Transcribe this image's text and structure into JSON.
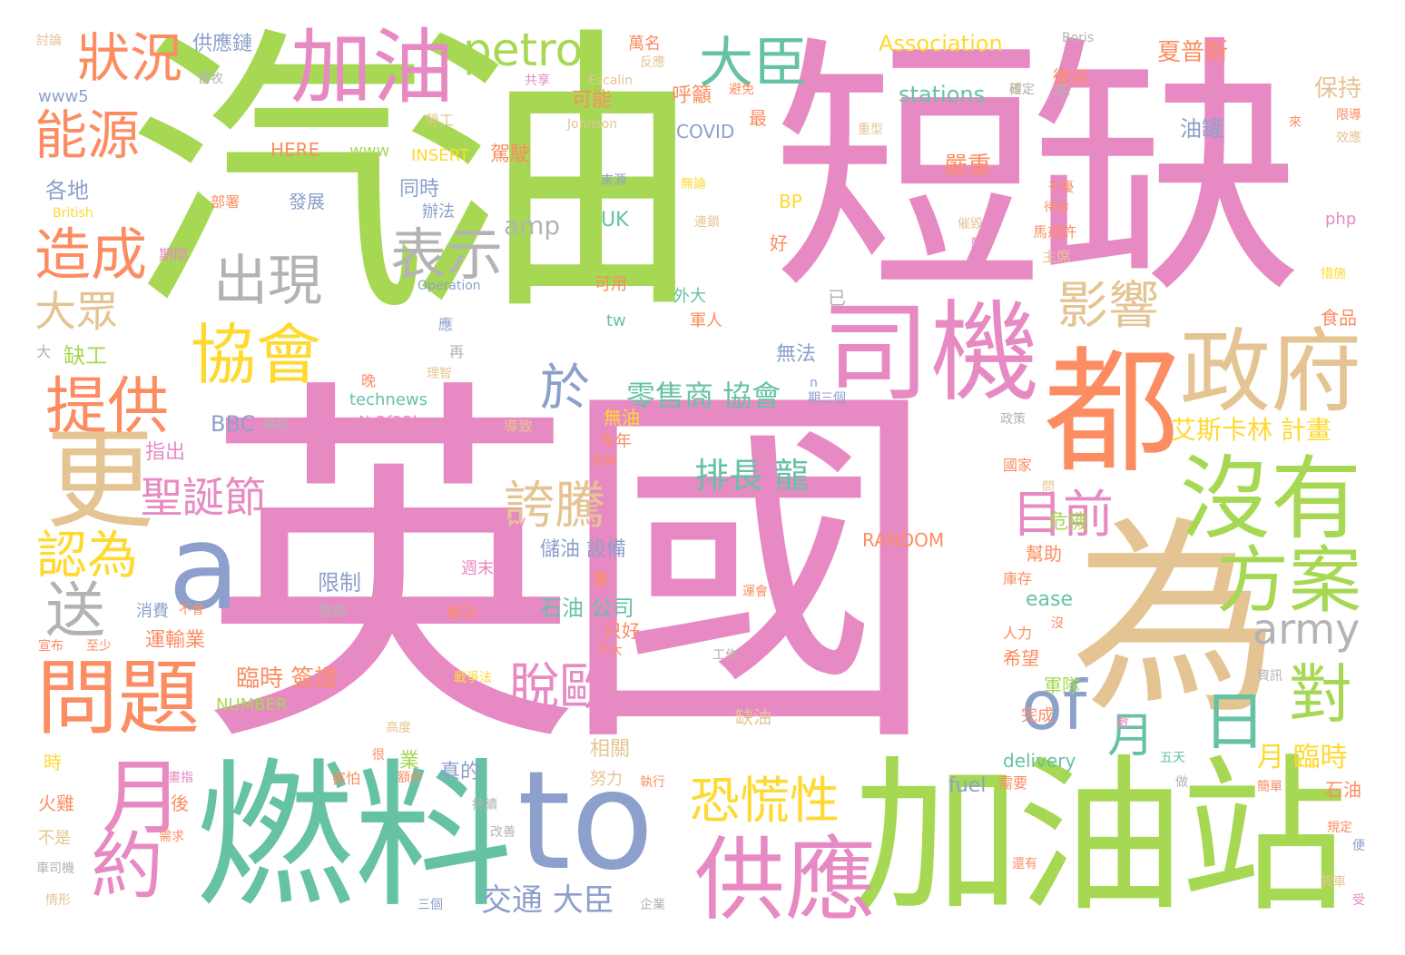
{
  "palette": {
    "pink": "#e78ac3",
    "green": "#a6d854",
    "tan": "#e5c494",
    "orange": "#fc8d62",
    "blue": "#8da0cb",
    "teal": "#66c2a5",
    "yellow": "#ffd92f",
    "gray": "#b3b3b3"
  },
  "words": [
    {
      "text": "汽油",
      "color": "#a6d854"
    },
    {
      "text": "短缺",
      "color": "#e78ac3"
    },
    {
      "text": "英國",
      "color": "#e78ac3"
    },
    {
      "text": "加油站",
      "color": "#a6d854"
    },
    {
      "text": "燃料",
      "color": "#66c2a5"
    },
    {
      "text": "to",
      "color": "#8da0cb"
    },
    {
      "text": "為",
      "color": "#e5c494"
    },
    {
      "text": "都",
      "color": "#fc8d62"
    },
    {
      "text": "a",
      "color": "#8da0cb"
    },
    {
      "text": "更",
      "color": "#e5c494"
    },
    {
      "text": "加油",
      "color": "#e78ac3"
    },
    {
      "text": "司機",
      "color": "#e78ac3"
    },
    {
      "text": "政府",
      "color": "#e5c494"
    },
    {
      "text": "沒有",
      "color": "#a6d854"
    },
    {
      "text": "方案",
      "color": "#a6d854"
    },
    {
      "text": "供應",
      "color": "#e78ac3"
    },
    {
      "text": "問題",
      "color": "#fc8d62"
    },
    {
      "text": "of",
      "color": "#8da0cb"
    },
    {
      "text": "petrol",
      "color": "#a6d854"
    },
    {
      "text": "大臣",
      "color": "#66c2a5"
    },
    {
      "text": "協會",
      "color": "#ffd92f"
    },
    {
      "text": "出現",
      "color": "#b3b3b3"
    },
    {
      "text": "表示",
      "color": "#b3b3b3"
    },
    {
      "text": "狀況",
      "color": "#fc8d62"
    },
    {
      "text": "能源",
      "color": "#fc8d62"
    },
    {
      "text": "造成",
      "color": "#fc8d62"
    },
    {
      "text": "大眾",
      "color": "#e5c494"
    },
    {
      "text": "提供",
      "color": "#fc8d62"
    },
    {
      "text": "月",
      "color": "#e78ac3"
    },
    {
      "text": "約",
      "color": "#e78ac3"
    },
    {
      "text": "送",
      "color": "#b3b3b3"
    },
    {
      "text": "認為",
      "color": "#ffd92f"
    },
    {
      "text": "聖誕節",
      "color": "#e78ac3"
    },
    {
      "text": "於",
      "color": "#8da0cb"
    },
    {
      "text": "誇騰",
      "color": "#e5c494"
    },
    {
      "text": "影響",
      "color": "#e5c494"
    },
    {
      "text": "目前",
      "color": "#e78ac3"
    },
    {
      "text": "恐慌性",
      "color": "#ffd92f"
    },
    {
      "text": "脫歐",
      "color": "#e78ac3"
    },
    {
      "text": "army",
      "color": "#b3b3b3"
    },
    {
      "text": "對",
      "color": "#a6d854"
    },
    {
      "text": "日",
      "color": "#66c2a5"
    },
    {
      "text": "月",
      "color": "#66c2a5"
    },
    {
      "text": "零售商 協會",
      "color": "#66c2a5"
    },
    {
      "text": "排長 龍",
      "color": "#66c2a5"
    },
    {
      "text": "交通 大臣",
      "color": "#8da0cb"
    },
    {
      "text": "艾斯卡林 計畫",
      "color": "#ffd92f"
    },
    {
      "text": "月 臨時",
      "color": "#ffd92f"
    },
    {
      "text": "臨時 簽證",
      "color": "#fc8d62"
    },
    {
      "text": "stations",
      "color": "#66c2a5"
    },
    {
      "text": "Association",
      "color": "#ffd92f"
    },
    {
      "text": "夏普斯",
      "color": "#fc8d62"
    },
    {
      "text": "保持",
      "color": "#e5c494"
    },
    {
      "text": "徵召",
      "color": "#fc8d62"
    },
    {
      "text": "不",
      "color": "#b3b3b3"
    },
    {
      "text": "油罐",
      "color": "#8da0cb"
    },
    {
      "text": "嚴重",
      "color": "#fc8d62"
    },
    {
      "text": "呼籲",
      "color": "#fc8d62"
    },
    {
      "text": "最",
      "color": "#fc8d62"
    },
    {
      "text": "COVID",
      "color": "#8da0cb"
    },
    {
      "text": "可能",
      "color": "#fc8d62"
    },
    {
      "text": "駕駛",
      "color": "#fc8d62"
    },
    {
      "text": "INSERT",
      "color": "#ffd92f"
    },
    {
      "text": "HERE",
      "color": "#fc8d62"
    },
    {
      "text": "www",
      "color": "#a6d854"
    },
    {
      "text": "供應鏈",
      "color": "#8da0cb"
    },
    {
      "text": "各地",
      "color": "#8da0cb"
    },
    {
      "text": "同時",
      "color": "#8da0cb"
    },
    {
      "text": "辦法",
      "color": "#8da0cb"
    },
    {
      "text": "發展",
      "color": "#8da0cb"
    },
    {
      "text": "amp",
      "color": "#b3b3b3"
    },
    {
      "text": "UK",
      "color": "#66c2a5"
    },
    {
      "text": "BP",
      "color": "#ffd92f"
    },
    {
      "text": "好",
      "color": "#fc8d62"
    },
    {
      "text": "無法",
      "color": "#8da0cb"
    },
    {
      "text": "可用",
      "color": "#fc8d62"
    },
    {
      "text": "tw",
      "color": "#66c2a5"
    },
    {
      "text": "外大",
      "color": "#66c2a5"
    },
    {
      "text": "軍人",
      "color": "#fc8d62"
    },
    {
      "text": "已",
      "color": "#b3b3b3"
    },
    {
      "text": "technews",
      "color": "#66c2a5"
    },
    {
      "text": "a4b3f35b",
      "color": "#e78ac3"
    },
    {
      "text": "BBC",
      "color": "#8da0cb"
    },
    {
      "text": "缺工",
      "color": "#a6d854"
    },
    {
      "text": "大",
      "color": "#b3b3b3"
    },
    {
      "text": "指出",
      "color": "#e78ac3"
    },
    {
      "text": "無油",
      "color": "#ffd92f"
    },
    {
      "text": "今年",
      "color": "#fc8d62"
    },
    {
      "text": "危機",
      "color": "#a6d854"
    },
    {
      "text": "幫助",
      "color": "#fc8d62"
    },
    {
      "text": "RANDOM",
      "color": "#fc8d62"
    },
    {
      "text": "儲油 設備",
      "color": "#8da0cb"
    },
    {
      "text": "石油 公司",
      "color": "#66c2a5"
    },
    {
      "text": "只好",
      "color": "#fc8d62"
    },
    {
      "text": "限制",
      "color": "#8da0cb"
    },
    {
      "text": "消費",
      "color": "#8da0cb"
    },
    {
      "text": "運輸業",
      "color": "#fc8d62"
    },
    {
      "text": "cb",
      "color": "#e78ac3"
    },
    {
      "text": "解決",
      "color": "#fc8d62"
    },
    {
      "text": "週末",
      "color": "#e78ac3"
    },
    {
      "text": "HGV",
      "color": "#e78ac3"
    },
    {
      "text": "ease",
      "color": "#66c2a5"
    },
    {
      "text": "希望",
      "color": "#fc8d62"
    },
    {
      "text": "軍隊",
      "color": "#a6d854"
    },
    {
      "text": "完成",
      "color": "#fc8d62"
    },
    {
      "text": "庫存",
      "color": "#fc8d62"
    },
    {
      "text": "人力",
      "color": "#fc8d62"
    },
    {
      "text": "NUMBER",
      "color": "#a6d854"
    },
    {
      "text": "缺油",
      "color": "#e5c494"
    },
    {
      "text": "相關",
      "color": "#e5c494"
    },
    {
      "text": "業",
      "color": "#a6d854"
    },
    {
      "text": "真的",
      "color": "#8da0cb"
    },
    {
      "text": "fuel",
      "color": "#8da0cb"
    },
    {
      "text": "delivery",
      "color": "#66c2a5"
    },
    {
      "text": "努力",
      "color": "#e5c494"
    },
    {
      "text": "需要",
      "color": "#fc8d62"
    },
    {
      "text": "石油",
      "color": "#fc8d62"
    },
    {
      "text": "火雞",
      "color": "#fc8d62"
    },
    {
      "text": "後",
      "color": "#fc8d62"
    },
    {
      "text": "不是",
      "color": "#e5c494"
    },
    {
      "text": "時",
      "color": "#ffd92f"
    },
    {
      "text": "害怕",
      "color": "#fc8d62"
    },
    {
      "text": "www5",
      "color": "#8da0cb"
    },
    {
      "text": "討論",
      "color": "#e5c494"
    },
    {
      "text": "British",
      "color": "#ffd92f"
    },
    {
      "text": "Boris",
      "color": "#b3b3b3"
    },
    {
      "text": "Johnson",
      "color": "#e5c494"
    },
    {
      "text": "Operation",
      "color": "#8da0cb"
    },
    {
      "text": "Escalin",
      "color": "#e5c494"
    },
    {
      "text": "php",
      "color": "#e78ac3"
    },
    {
      "text": "食品",
      "color": "#fc8d62"
    },
    {
      "text": "主席",
      "color": "#e5c494"
    },
    {
      "text": "馬戒許",
      "color": "#fc8d62"
    },
    {
      "text": "國家",
      "color": "#fc8d62"
    },
    {
      "text": "政策",
      "color": "#b3b3b3"
    },
    {
      "text": "問",
      "color": "#e5c494"
    },
    {
      "text": "穩定",
      "color": "#e5c494"
    },
    {
      "text": "萬名",
      "color": "#fc8d62"
    },
    {
      "text": "共享",
      "color": "#e78ac3"
    },
    {
      "text": "勞工",
      "color": "#e5c494"
    },
    {
      "text": "部署",
      "color": "#fc8d62"
    },
    {
      "text": "期間",
      "color": "#e78ac3"
    },
    {
      "text": "蓄牧",
      "color": "#b3b3b3"
    },
    {
      "text": "移民",
      "color": "#b3b3b3"
    },
    {
      "text": "導致",
      "color": "#e5c494"
    },
    {
      "text": "再",
      "color": "#b3b3b3"
    },
    {
      "text": "應",
      "color": "#8da0cb"
    },
    {
      "text": "晚",
      "color": "#fc8d62"
    },
    {
      "text": "理智",
      "color": "#e5c494"
    },
    {
      "text": "告訴",
      "color": "#fc8d62"
    },
    {
      "text": "會",
      "color": "#fc8d62"
    },
    {
      "text": "不大",
      "color": "#fc8d62"
    },
    {
      "text": "不會",
      "color": "#fc8d62"
    },
    {
      "text": "宣布",
      "color": "#fc8d62"
    },
    {
      "text": "至少",
      "color": "#fc8d62"
    },
    {
      "text": "德森",
      "color": "#b3b3b3"
    },
    {
      "text": "工作",
      "color": "#b3b3b3"
    },
    {
      "text": "很",
      "color": "#fc8d62"
    },
    {
      "text": "高度",
      "color": "#e5c494"
    },
    {
      "text": "額外",
      "color": "#fc8d62"
    },
    {
      "text": "持續",
      "color": "#b3b3b3"
    },
    {
      "text": "改善",
      "color": "#b3b3b3"
    },
    {
      "text": "企業",
      "color": "#b3b3b3"
    },
    {
      "text": "三個",
      "color": "#8da0cb"
    },
    {
      "text": "需求",
      "color": "#fc8d62"
    },
    {
      "text": "車司機",
      "color": "#b3b3b3"
    },
    {
      "text": "情形",
      "color": "#e5c494"
    },
    {
      "text": "執行",
      "color": "#fc8d62"
    },
    {
      "text": "五天",
      "color": "#66c2a5"
    },
    {
      "text": "做",
      "color": "#b3b3b3"
    },
    {
      "text": "簡單",
      "color": "#fc8d62"
    },
    {
      "text": "還有",
      "color": "#fc8d62"
    },
    {
      "text": "規定",
      "color": "#fc8d62"
    },
    {
      "text": "便",
      "color": "#8da0cb"
    },
    {
      "text": "受",
      "color": "#e78ac3"
    },
    {
      "text": "資訊",
      "color": "#b3b3b3"
    },
    {
      "text": "沒",
      "color": "#fc8d62"
    },
    {
      "text": "數",
      "color": "#e78ac3"
    },
    {
      "text": "來",
      "color": "#fc8d62"
    },
    {
      "text": "限導",
      "color": "#fc8d62"
    },
    {
      "text": "效應",
      "color": "#e5c494"
    },
    {
      "text": "措施",
      "color": "#ffd92f"
    },
    {
      "text": "待命",
      "color": "#fc8d62"
    },
    {
      "text": "干擾",
      "color": "#fc8d62"
    },
    {
      "text": "確定",
      "color": "#b3b3b3"
    },
    {
      "text": "避免",
      "color": "#fc8d62"
    },
    {
      "text": "重型",
      "color": "#e5c494"
    },
    {
      "text": "無論",
      "color": "#ffd92f"
    },
    {
      "text": "連鎖",
      "color": "#e5c494"
    },
    {
      "text": "來源",
      "color": "#8da0cb"
    },
    {
      "text": "反應",
      "color": "#e5c494"
    },
    {
      "text": "駐",
      "color": "#e78ac3"
    },
    {
      "text": "催毀",
      "color": "#e5c494"
    },
    {
      "text": "n",
      "color": "#8da0cb"
    },
    {
      "text": "期三個",
      "color": "#8da0cb"
    },
    {
      "text": "貨車",
      "color": "#e5c494"
    },
    {
      "text": "畫指",
      "color": "#e78ac3"
    },
    {
      "text": "戰爭法",
      "color": "#ffd92f"
    },
    {
      "text": "運會",
      "color": "#fc8d62"
    }
  ]
}
